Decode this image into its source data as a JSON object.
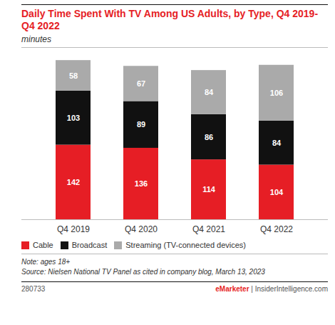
{
  "chart_data": {
    "type": "bar",
    "stacked": true,
    "title": "Daily Time Spent With TV Among US Adults, by Type, Q4 2019-Q4 2022",
    "subtitle": "minutes",
    "categories": [
      "Q4 2019",
      "Q4 2020",
      "Q4 2021",
      "Q4 2022"
    ],
    "series": [
      {
        "name": "Cable",
        "color": "#e61e25",
        "values": [
          142,
          136,
          114,
          104
        ]
      },
      {
        "name": "Broadcast",
        "color": "#111111",
        "values": [
          103,
          89,
          86,
          84
        ]
      },
      {
        "name": "Streaming (TV-connected devices)",
        "color": "#aaaaaa",
        "values": [
          58,
          67,
          84,
          106
        ]
      }
    ],
    "ylim": [
      0,
      310
    ],
    "tick_labels": "x",
    "grid": false,
    "legend": "bottom",
    "data_labels": true,
    "annotations": [
      "Note: ages 18+",
      "Source: Nielsen National TV Panel as cited in company blog, March 13, 2023",
      "280733",
      "eMarketer",
      " | ",
      "InsiderIntelligence.com"
    ]
  }
}
